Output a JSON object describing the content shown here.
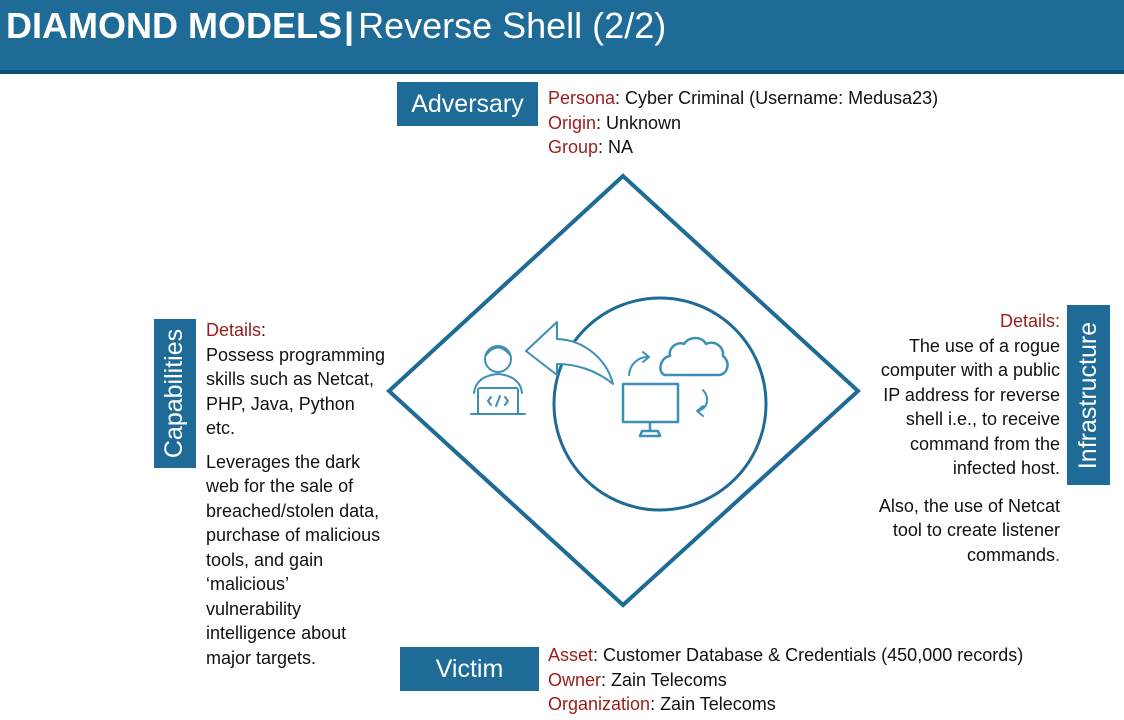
{
  "header": {
    "title_bold": "DIAMOND MODELS",
    "separator": "|",
    "title_rest": "Reverse Shell (2/2)"
  },
  "adversary": {
    "label": "Adversary",
    "persona_key": "Persona",
    "persona_value": ": Cyber Criminal (Username: Medusa23)",
    "origin_key": "Origin",
    "origin_value": ": Unknown",
    "group_key": "Group",
    "group_value": ": NA"
  },
  "capabilities": {
    "label": "Capabilities",
    "details_key": "Details",
    "details_colon": ":",
    "paragraph1": "Possess programming skills such as Netcat, PHP, Java, Python etc.",
    "paragraph2": "Leverages the dark web for the sale of breached/stolen data, purchase of malicious tools, and gain ‘malicious’ vulnerability intelligence about major targets."
  },
  "infrastructure": {
    "label": "Infrastructure",
    "details_key": "Details:",
    "paragraph1": "The use of a rogue computer with a public IP address for reverse shell i.e., to receive command from the infected host.",
    "paragraph2": "Also, the use of Netcat tool to create listener commands",
    "paragraph2_end": "."
  },
  "victim": {
    "label": "Victim",
    "asset_key": "Asset",
    "asset_value": ": Customer Database & Credentials (450,000 records)",
    "owner_key": "Owner",
    "owner_value": ": Zain Telecoms",
    "organization_key": "Organization",
    "organization_value": ": Zain Telecoms"
  },
  "icons": [
    "hacker-laptop-icon",
    "arrow-left-curved-icon",
    "cloud-icon",
    "monitor-icon",
    "sync-arrows-icon"
  ],
  "colors": {
    "header": "#1f6b97",
    "header_border": "#0b4f78",
    "label_key": "#9b1c1c",
    "line": "#1f6b97",
    "icon": "#3e8fb6"
  }
}
